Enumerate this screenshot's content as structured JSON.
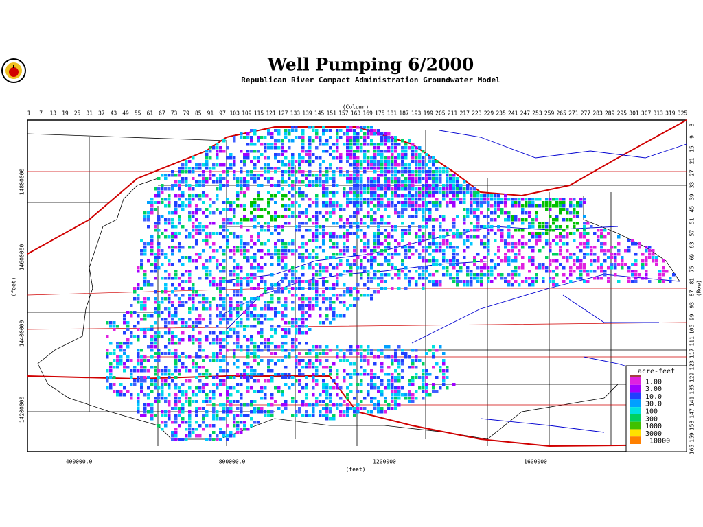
{
  "title": "Well Pumping 6/2000",
  "subtitle": "Republican River Compact Administration Groundwater Model",
  "column_axis": {
    "label": "(Column)",
    "ticks": [
      1,
      7,
      13,
      19,
      25,
      31,
      37,
      43,
      49,
      55,
      61,
      67,
      73,
      79,
      85,
      91,
      97,
      103,
      109,
      115,
      121,
      127,
      133,
      139,
      145,
      151,
      157,
      163,
      169,
      175,
      181,
      187,
      193,
      199,
      205,
      211,
      217,
      223,
      229,
      235,
      241,
      247,
      253,
      259,
      265,
      271,
      277,
      283,
      289,
      295,
      301,
      307,
      313,
      319,
      325
    ]
  },
  "row_axis": {
    "label": "(Row)",
    "ticks": [
      3,
      9,
      15,
      21,
      27,
      33,
      39,
      45,
      51,
      57,
      63,
      69,
      75,
      81,
      87,
      93,
      99,
      105,
      111,
      117,
      123,
      129,
      135,
      141,
      147,
      153,
      159,
      165
    ]
  },
  "x_axis": {
    "label": "(feet)",
    "ticks": [
      "400000.0",
      "800000.0",
      "1200000",
      "1600000"
    ]
  },
  "y_axis": {
    "label": "(feet)",
    "ticks": [
      "14800000",
      "14600000",
      "14400000",
      "14200000"
    ]
  },
  "legend": {
    "title": "acre-feet",
    "labels": [
      "1.00",
      "3.00",
      "10.0",
      "30.0",
      "100",
      "300",
      "1000",
      "3000",
      "-10000"
    ]
  }
}
